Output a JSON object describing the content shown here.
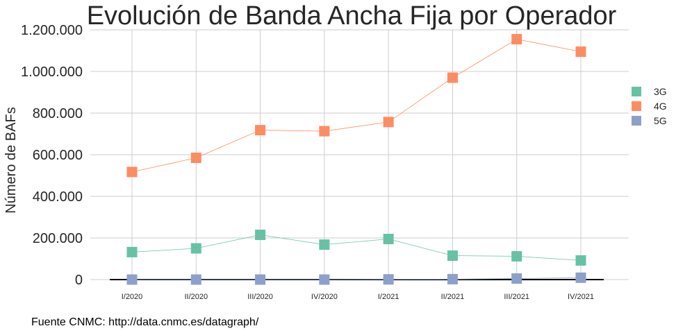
{
  "chart_data": {
    "type": "line",
    "title": "Evolución de Banda Ancha Fija por Operador",
    "xlabel": "",
    "ylabel": "Número de BAFs",
    "categories": [
      "I/2020",
      "II/2020",
      "III/2020",
      "IV/2020",
      "I/2021",
      "II/2021",
      "III/2021",
      "IV/2021"
    ],
    "ylim": [
      0,
      1200000
    ],
    "yticks": [
      0,
      200000,
      400000,
      600000,
      800000,
      1000000,
      1200000
    ],
    "ytick_labels": [
      "0",
      "200.000",
      "400.000",
      "600.000",
      "800.000",
      "1.000.000",
      "1.200.000"
    ],
    "grid": true,
    "legend_position": "right",
    "series": [
      {
        "name": "3G",
        "color": "#66c2a5",
        "values": [
          132000,
          150000,
          215000,
          168000,
          195000,
          115000,
          112000,
          92000
        ]
      },
      {
        "name": "4G",
        "color": "#fc8d62",
        "values": [
          517000,
          585000,
          718000,
          713000,
          757000,
          970000,
          1155000,
          1095000
        ]
      },
      {
        "name": "5G",
        "color": "#8da0cb",
        "values": [
          0,
          0,
          0,
          0,
          1000,
          2000,
          5000,
          9000
        ]
      }
    ]
  },
  "caption": "Fuente CNMC: http://data.cnmc.es/datagraph/"
}
